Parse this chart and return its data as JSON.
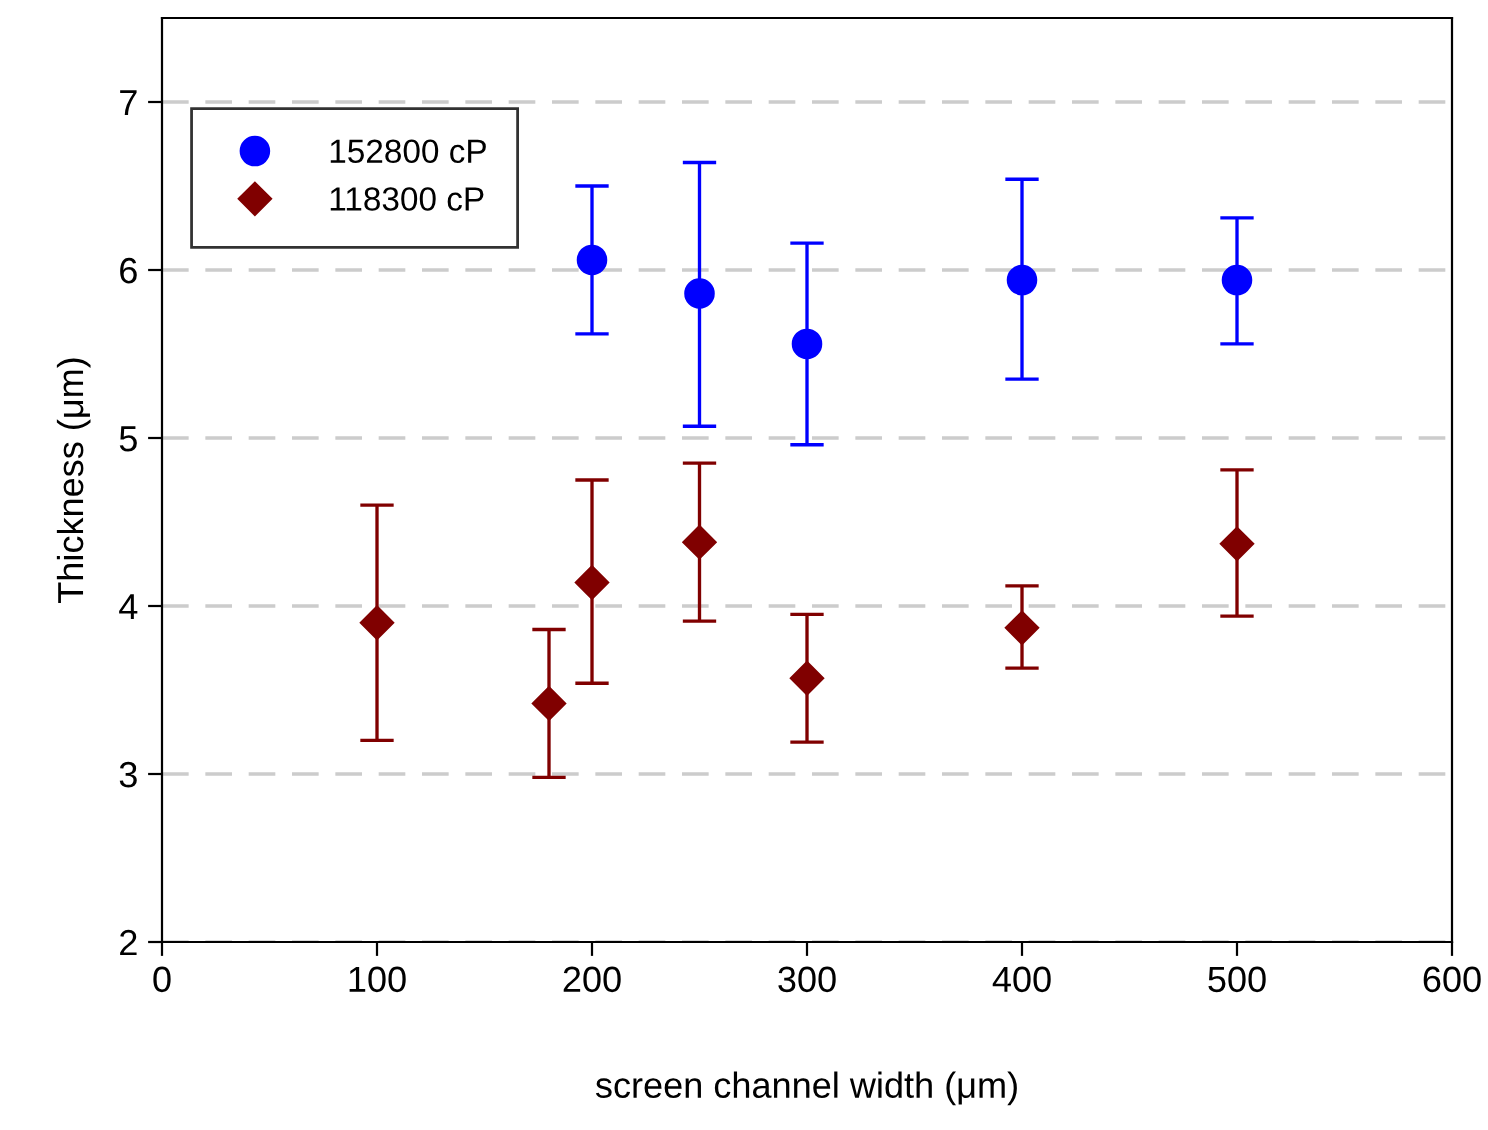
{
  "chart_data": {
    "type": "scatter",
    "xlabel": "screen channel width (μm)",
    "ylabel": "Thickness (μm)",
    "xlim": [
      0,
      600
    ],
    "xticks": [
      0,
      100,
      200,
      300,
      400,
      500,
      600
    ],
    "ylim": [
      2,
      7.5
    ],
    "yticks": [
      2,
      3,
      4,
      5,
      6,
      7
    ],
    "grid": "y",
    "legend": "top left",
    "series": [
      {
        "name": "152800 cP",
        "color": "#0000ff",
        "marker": "circle",
        "x": [
          200,
          250,
          300,
          400,
          500
        ],
        "values": [
          6.06,
          5.86,
          5.56,
          5.94,
          5.94
        ],
        "errors": [
          [
            5.62,
            6.5
          ],
          [
            5.07,
            6.64
          ],
          [
            4.96,
            6.16
          ],
          [
            5.35,
            6.54
          ],
          [
            5.56,
            6.31
          ]
        ]
      },
      {
        "name": "118300 cP",
        "color": "#800000",
        "marker": "diamond",
        "x": [
          100,
          180,
          200,
          250,
          300,
          400,
          500
        ],
        "values": [
          3.9,
          3.42,
          4.14,
          4.38,
          3.57,
          3.87,
          4.37
        ],
        "errors": [
          [
            3.2,
            4.6
          ],
          [
            2.98,
            3.86
          ],
          [
            3.54,
            4.75
          ],
          [
            3.91,
            4.85
          ],
          [
            3.19,
            3.95
          ],
          [
            3.63,
            4.12
          ],
          [
            3.94,
            4.81
          ]
        ]
      }
    ]
  }
}
